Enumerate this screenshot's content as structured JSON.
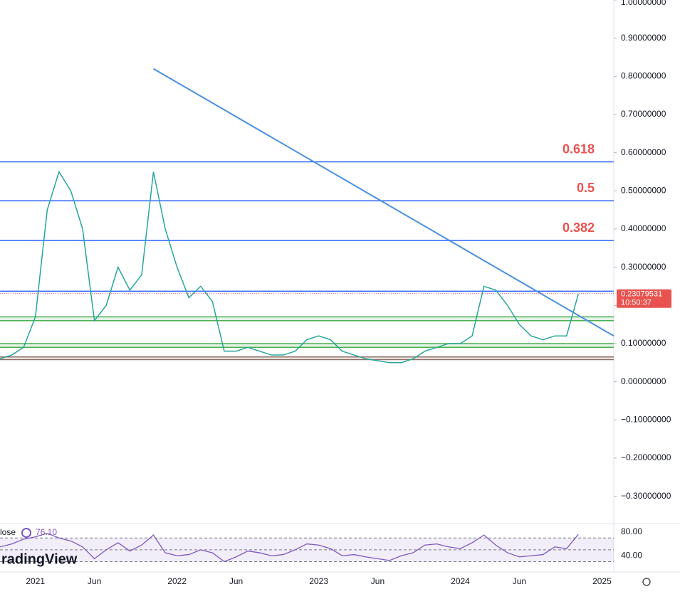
{
  "chart_data": {
    "type": "line",
    "x": [
      "2020-10",
      "2020-11",
      "2020-12",
      "2021-01",
      "2021-02",
      "2021-03",
      "2021-04",
      "2021-05",
      "2021-06",
      "2021-07",
      "2021-08",
      "2021-09",
      "2021-10",
      "2021-11",
      "2021-12",
      "2022-01",
      "2022-02",
      "2022-03",
      "2022-04",
      "2022-05",
      "2022-06",
      "2022-07",
      "2022-08",
      "2022-09",
      "2022-10",
      "2022-11",
      "2022-12",
      "2023-01",
      "2023-02",
      "2023-03",
      "2023-04",
      "2023-05",
      "2023-06",
      "2023-07",
      "2023-08",
      "2023-09",
      "2023-10",
      "2023-11",
      "2023-12",
      "2024-01",
      "2024-02",
      "2024-03",
      "2024-04",
      "2024-05",
      "2024-06",
      "2024-07",
      "2024-08",
      "2024-09",
      "2024-10",
      "2024-11"
    ],
    "series": [
      {
        "color": "#26a69a",
        "values": [
          0.06,
          0.07,
          0.09,
          0.17,
          0.45,
          0.55,
          0.5,
          0.4,
          0.16,
          0.2,
          0.3,
          0.24,
          0.28,
          0.55,
          0.4,
          0.3,
          0.22,
          0.25,
          0.21,
          0.08,
          0.08,
          0.09,
          0.08,
          0.07,
          0.07,
          0.08,
          0.11,
          0.12,
          0.11,
          0.08,
          0.07,
          0.06,
          0.055,
          0.05,
          0.05,
          0.06,
          0.08,
          0.09,
          0.1,
          0.1,
          0.12,
          0.25,
          0.24,
          0.2,
          0.15,
          0.12,
          0.11,
          0.12,
          0.12,
          0.23
        ]
      }
    ],
    "xlim": [
      "2020-10",
      "2025-02"
    ],
    "xticks": [
      {
        "value": "2021-01",
        "label": "2021"
      },
      {
        "value": "2021-06",
        "label": "Jun"
      },
      {
        "value": "2022-01",
        "label": "2022"
      },
      {
        "value": "2022-06",
        "label": "Jun"
      },
      {
        "value": "2023-01",
        "label": "2023"
      },
      {
        "value": "2023-06",
        "label": "Jun"
      },
      {
        "value": "2024-01",
        "label": "2024"
      },
      {
        "value": "2024-06",
        "label": "Jun"
      },
      {
        "value": "2025-01",
        "label": "2025"
      }
    ],
    "ylim": [
      -0.366,
      1.0
    ],
    "yticks": [
      {
        "value": 1.0,
        "label": "1.00000000"
      },
      {
        "value": 0.9,
        "label": "0.90000000"
      },
      {
        "value": 0.8,
        "label": "0.80000000"
      },
      {
        "value": 0.7,
        "label": "0.70000000"
      },
      {
        "value": 0.6,
        "label": "0.60000000"
      },
      {
        "value": 0.5,
        "label": "0.50000000"
      },
      {
        "value": 0.4,
        "label": "0.40000000"
      },
      {
        "value": 0.3,
        "label": "0.30000000"
      },
      {
        "value": 0.2,
        "label": "0.20000000"
      },
      {
        "value": 0.1,
        "label": "0.10000000"
      },
      {
        "value": 0.0,
        "label": "0.00000000"
      },
      {
        "value": -0.1,
        "label": "−0.10000000"
      },
      {
        "value": -0.2,
        "label": "−0.20000000"
      },
      {
        "value": -0.3,
        "label": "−0.30000000"
      }
    ],
    "levels": [
      {
        "value": 0.576,
        "label": "0.618",
        "color": "#2962ff"
      },
      {
        "value": 0.474,
        "label": "0.5",
        "color": "#2962ff"
      },
      {
        "value": 0.37,
        "label": "0.382",
        "color": "#2962ff"
      },
      {
        "value": 0.237,
        "color": "#2962ff"
      },
      {
        "value": 0.17,
        "color": "#4caf50"
      },
      {
        "value": 0.16,
        "color": "#4caf50"
      },
      {
        "value": 0.1,
        "color": "#4caf50"
      },
      {
        "value": 0.09,
        "color": "#4caf50"
      },
      {
        "value": 0.065,
        "color": "#8d6e63"
      },
      {
        "value": 0.058,
        "color": "#8d6e63"
      }
    ],
    "trendline": {
      "x": [
        "2021-11",
        "2025-02"
      ],
      "y": [
        0.82,
        0.12
      ],
      "color": "#4a90e2"
    },
    "last_price": {
      "value": 0.23079531,
      "label": "0.23079531",
      "countdown": "10:50:37",
      "color": "#e8534f"
    },
    "rsi": {
      "label": "lose",
      "last_label": "76.10",
      "color": "#7e57c2",
      "ylim": [
        15,
        92
      ],
      "yticks": [
        {
          "value": 80,
          "label": "80.00"
        },
        {
          "value": 40,
          "label": "40.00"
        }
      ],
      "levels": [
        30,
        50,
        70
      ],
      "values": [
        55,
        60,
        68,
        72,
        78,
        70,
        65,
        55,
        35,
        50,
        62,
        48,
        58,
        75,
        45,
        40,
        42,
        50,
        45,
        30,
        38,
        48,
        45,
        40,
        42,
        50,
        60,
        58,
        52,
        40,
        42,
        38,
        35,
        32,
        40,
        45,
        58,
        60,
        55,
        52,
        62,
        75,
        58,
        45,
        38,
        40,
        42,
        55,
        52,
        76.1
      ]
    },
    "watermark": "radingView"
  }
}
